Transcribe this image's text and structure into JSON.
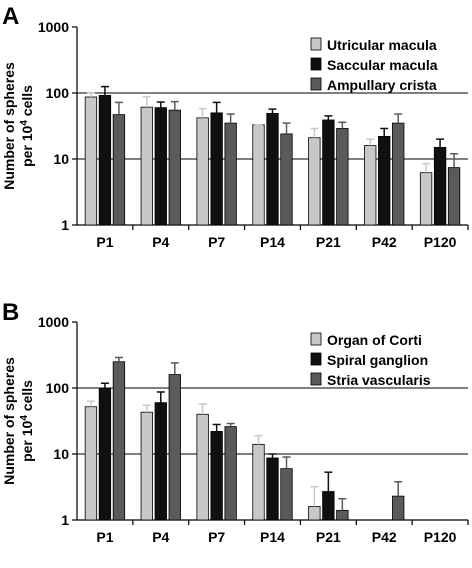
{
  "chart_data": [
    {
      "panel_label": "A",
      "type": "bar",
      "ylabel_line1": "Number of spheres",
      "ylabel_line2_prefix": "per 10",
      "ylabel_line2_sup": "4",
      "ylabel_line2_suffix": " cells",
      "yscale": "log",
      "ylim": [
        1,
        1000
      ],
      "yticks": [
        "1",
        "10",
        "100",
        "1000"
      ],
      "grid": "horizontal lines at 10 and 100",
      "legend_position": "top-right",
      "categories": [
        "P1",
        "P4",
        "P7",
        "P14",
        "P21",
        "P42",
        "P120"
      ],
      "series": [
        {
          "name": "Utricular macula",
          "color": "#c8c8c8",
          "values": [
            87,
            61,
            42,
            33,
            21,
            16,
            6.2
          ],
          "errors": [
            101,
            88,
            58,
            33,
            29,
            20,
            8.5
          ]
        },
        {
          "name": "Saccular macula",
          "color": "#101010",
          "values": [
            92,
            60,
            50,
            49,
            39,
            22,
            15
          ],
          "errors": [
            125,
            73,
            72,
            57,
            45,
            29,
            20
          ]
        },
        {
          "name": "Ampullary crista",
          "color": "#5a5a5a",
          "values": [
            47,
            55,
            35,
            24,
            29,
            35,
            7.4
          ],
          "errors": [
            72,
            74,
            48,
            35,
            36,
            48,
            12
          ]
        }
      ]
    },
    {
      "panel_label": "B",
      "type": "bar",
      "ylabel_line1": "Number of spheres",
      "ylabel_line2_prefix": "per 10",
      "ylabel_line2_sup": "4",
      "ylabel_line2_suffix": " cells",
      "yscale": "log",
      "ylim": [
        1,
        1000
      ],
      "yticks": [
        "1",
        "10",
        "100",
        "1000"
      ],
      "grid": "horizontal lines at 10 and 100",
      "legend_position": "top-right",
      "categories": [
        "P1",
        "P4",
        "P7",
        "P14",
        "P21",
        "P42",
        "P120"
      ],
      "series": [
        {
          "name": "Organ of Corti",
          "color": "#c8c8c8",
          "values": [
            52,
            43,
            40,
            14,
            1.6,
            null,
            null
          ],
          "errors": [
            63,
            55,
            57,
            19,
            3.2,
            null,
            null
          ]
        },
        {
          "name": "Spiral ganglion",
          "color": "#101010",
          "values": [
            100,
            60,
            22,
            8.7,
            2.7,
            null,
            null
          ],
          "errors": [
            118,
            87,
            28,
            10,
            5.3,
            null,
            null
          ]
        },
        {
          "name": "Stria vascularis",
          "color": "#5a5a5a",
          "values": [
            250,
            160,
            26,
            6.0,
            1.4,
            2.3,
            null
          ],
          "errors": [
            290,
            240,
            29,
            9.0,
            2.1,
            3.8,
            null
          ]
        }
      ]
    }
  ]
}
